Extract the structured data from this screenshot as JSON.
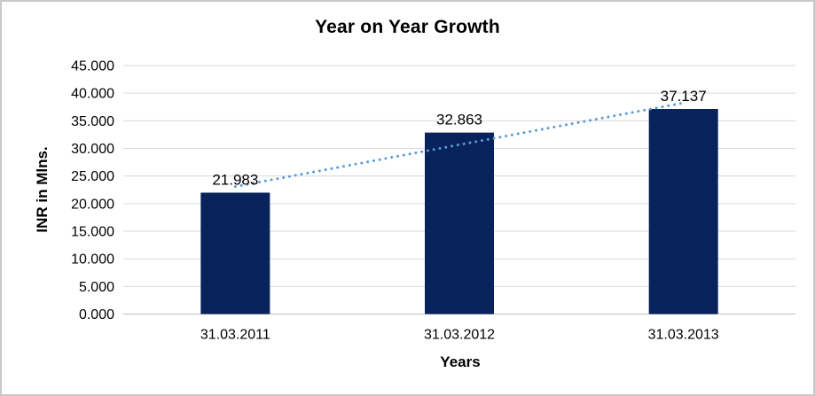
{
  "window": {
    "background": "#ffffff",
    "border_color": "#c9c9c9"
  },
  "chart_data": {
    "type": "bar",
    "title": "Year on Year Growth",
    "xlabel": "Years",
    "ylabel": "INR in Mlns.",
    "categories": [
      "31.03.2011",
      "31.03.2012",
      "31.03.2013"
    ],
    "values": [
      21.983,
      32.863,
      37.137
    ],
    "data_labels": [
      "21.983",
      "32.863",
      "37.137"
    ],
    "ylim": [
      0,
      45
    ],
    "ytick_step": 5,
    "ytick_labels": [
      "0.000",
      "5.000",
      "10.000",
      "15.000",
      "20.000",
      "25.000",
      "30.000",
      "35.000",
      "40.000",
      "45.000"
    ],
    "grid": true,
    "legend": "none",
    "trendline": {
      "type": "linear",
      "style": "dotted",
      "color": "#5B9BD5"
    },
    "colors": {
      "bar": "#08225C",
      "gridline": "#D9D9D9",
      "axis_line": "#BFBFBF",
      "label_text": "#000000"
    }
  }
}
